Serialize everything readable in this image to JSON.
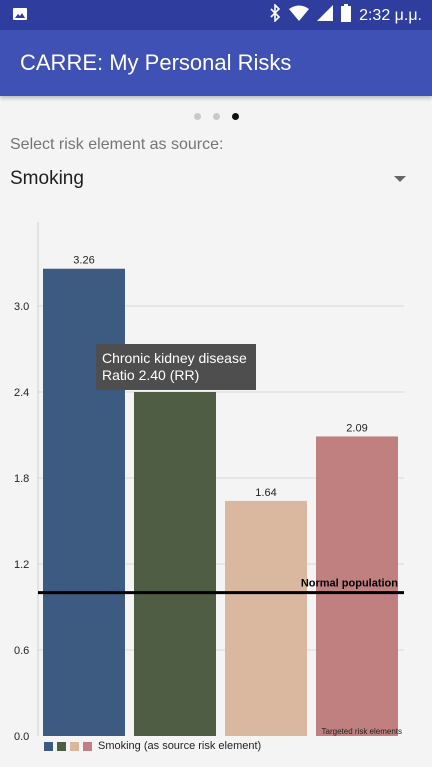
{
  "status_bar": {
    "time": "2:32 μ.μ.",
    "icons": [
      "image-icon",
      "bluetooth-icon",
      "wifi-icon",
      "signal-icon",
      "battery-icon"
    ]
  },
  "app_bar": {
    "title": "CARRE: My Personal Risks"
  },
  "pager": {
    "count": 3,
    "active_index": 2
  },
  "source_selector": {
    "label": "Select risk element as source:",
    "selected": "Smoking"
  },
  "tooltip": {
    "line1": "Chronic kidney disease",
    "line2": "Ratio 2.40 (RR)"
  },
  "chart_data": {
    "type": "bar",
    "categories": [
      "",
      "",
      "",
      ""
    ],
    "values": [
      3.26,
      2.4,
      1.64,
      2.09
    ],
    "value_labels": [
      "3.26",
      "",
      "1.64",
      "2.09"
    ],
    "colors": [
      "#3d5a80",
      "#4e5d44",
      "#dab89f",
      "#c08080"
    ],
    "ylim": [
      0,
      3.6
    ],
    "yticks": [
      "0.0",
      "0.6",
      "1.2",
      "1.8",
      "2.4",
      "3.0"
    ],
    "ytick_values": [
      0,
      0.6,
      1.2,
      1.8,
      2.4,
      3.0
    ],
    "reference_line": {
      "value": 1.0,
      "label": "Normal population"
    },
    "x_axis_note": "Targeted risk elements",
    "legend": {
      "label": "Smoking (as source risk element)"
    },
    "grid": true
  }
}
